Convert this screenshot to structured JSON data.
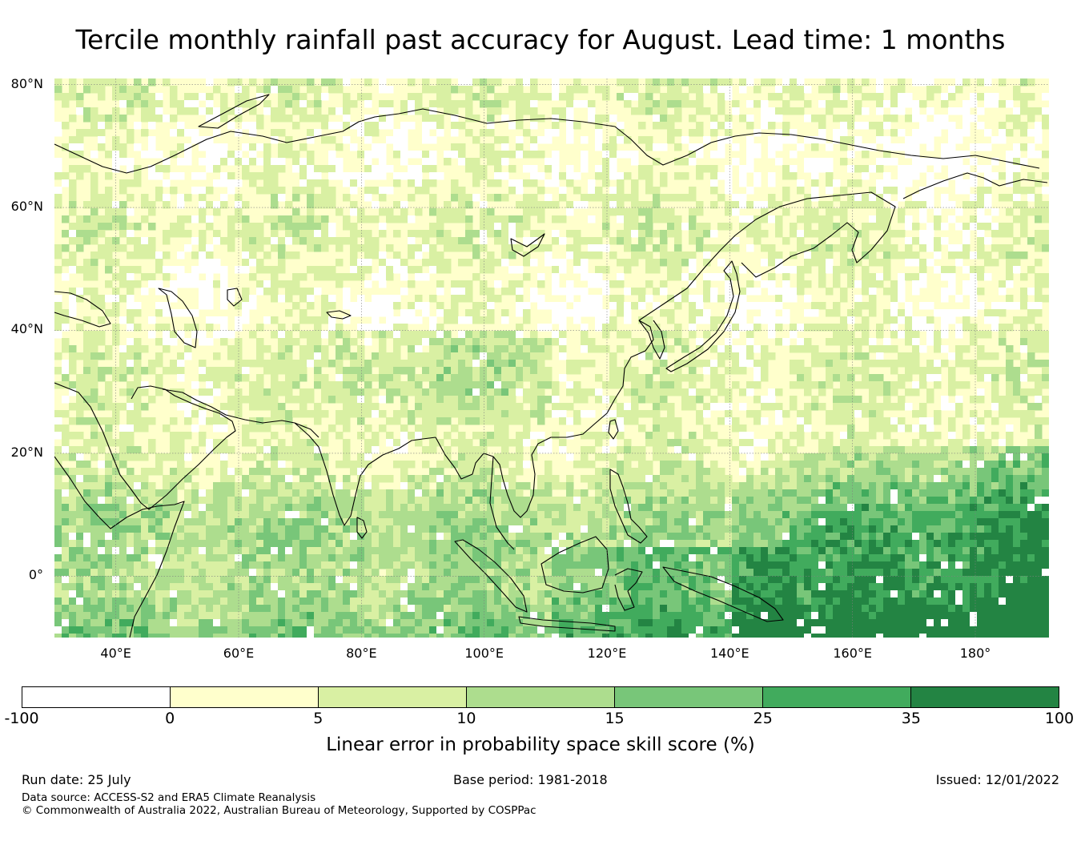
{
  "title": "Tercile monthly rainfall past accuracy for August. Lead time: 1 months",
  "map": {
    "region": "Asia, Indian Ocean and western Pacific",
    "extent": {
      "lon_min": 30,
      "lon_max": 192,
      "lat_min": -10,
      "lat_max": 81
    },
    "lat_ticks": [
      {
        "value": 80,
        "label": "80°N"
      },
      {
        "value": 60,
        "label": "60°N"
      },
      {
        "value": 40,
        "label": "40°N"
      },
      {
        "value": 20,
        "label": "20°N"
      },
      {
        "value": 0,
        "label": "0°"
      }
    ],
    "lon_ticks": [
      {
        "value": 40,
        "label": "40°E"
      },
      {
        "value": 60,
        "label": "60°E"
      },
      {
        "value": 80,
        "label": "80°E"
      },
      {
        "value": 100,
        "label": "100°E"
      },
      {
        "value": 120,
        "label": "120°E"
      },
      {
        "value": 140,
        "label": "140°E"
      },
      {
        "value": 160,
        "label": "160°E"
      },
      {
        "value": 180,
        "label": "180°"
      }
    ],
    "background_color": "#ffffcc",
    "gridlines": true,
    "coastlines": true
  },
  "legend": {
    "bounds": [
      "-100",
      "0",
      "5",
      "10",
      "15",
      "25",
      "35",
      "100"
    ],
    "colors": [
      "#ffffff",
      "#ffffcc",
      "#d9f0a3",
      "#addd8e",
      "#78c679",
      "#41ab5d",
      "#238443"
    ],
    "label": "Linear error in probability space skill score (%)"
  },
  "footer": {
    "run_date": "Run date: 25 July",
    "base_period": "Base period: 1981-2018",
    "issued": "Issued: 12/01/2022",
    "data_source": "Data source: ACCESS-S2 and ERA5 Climate Reanalysis",
    "copyright": "© Commonwealth of Australia 2022, Australian Bureau of Meteorology, Supported by COSPPac"
  }
}
